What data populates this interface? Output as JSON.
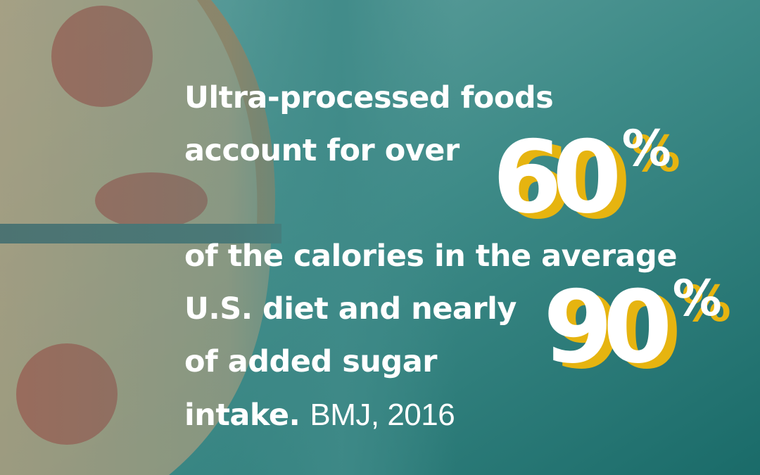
{
  "headline": {
    "lines": [
      "Ultra-processed foods",
      "account for over",
      "of the calories in the average",
      "U.S. diet and nearly",
      "of added sugar",
      "intake."
    ],
    "citation": "BMJ, 2016"
  },
  "stats": [
    {
      "number": 60,
      "unit": "%"
    },
    {
      "number": 90,
      "unit": "%"
    }
  ]
}
